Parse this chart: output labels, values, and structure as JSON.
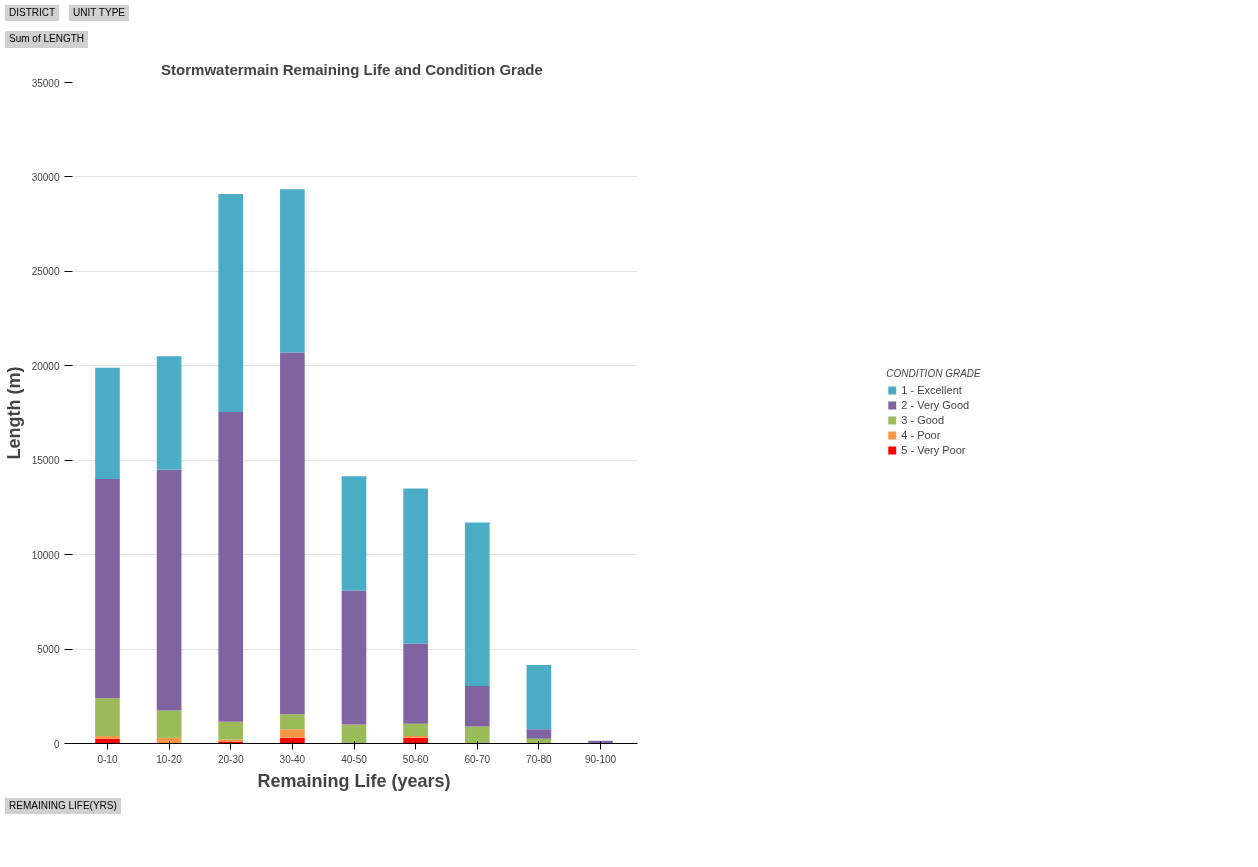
{
  "chart_data": {
    "type": "bar",
    "stacked": true,
    "title": "Stormwatermain Remaining  Life and Condition Grade",
    "xlabel": "Remaining Life (years)",
    "ylabel": "Length (m)",
    "legend_title": "CONDITION GRADE",
    "categories": [
      "0-10",
      "10-20",
      "20-30",
      "30-40",
      "40-50",
      "50-60",
      "60-70",
      "70-80",
      "90-100"
    ],
    "series": [
      {
        "name": "5 - Very Poor",
        "color": "#ff0000",
        "values": [
          250,
          null,
          100,
          300,
          0,
          300,
          0,
          0,
          0
        ]
      },
      {
        "name": "4 - Poor",
        "color": "#f79646",
        "values": [
          150,
          300,
          100,
          450,
          0,
          100,
          0,
          0,
          0
        ]
      },
      {
        "name": "3 - Good",
        "color": "#9bbb59",
        "values": [
          2000,
          1450,
          950,
          800,
          1000,
          650,
          900,
          250,
          0
        ]
      },
      {
        "name": "2 - Very Good",
        "color": "#8064a2",
        "values": [
          11600,
          12750,
          16400,
          19150,
          7100,
          4250,
          2150,
          500,
          150
        ]
      },
      {
        "name": "1 - Excellent",
        "color": "#4bacc6",
        "values": [
          5900,
          6000,
          11550,
          8650,
          6050,
          8200,
          8650,
          3400,
          0
        ]
      }
    ],
    "ylim": [
      0,
      35000
    ],
    "yticks": [
      0,
      5000,
      10000,
      15000,
      20000,
      25000,
      30000,
      35000
    ],
    "grid": "y",
    "legend": "right",
    "annotations": [
      "DISTRICT",
      "UNIT TYPE",
      "Sum of LENGTH",
      "REMAINING LIFE(YRS)"
    ]
  }
}
